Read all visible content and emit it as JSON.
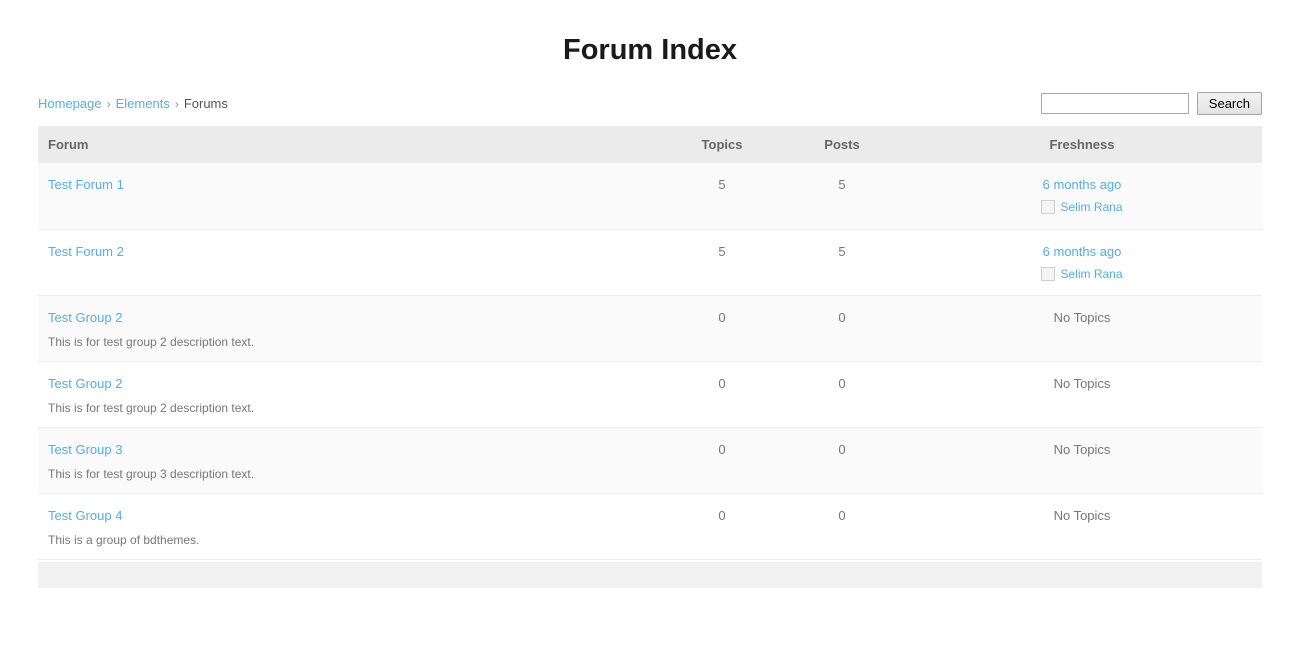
{
  "page": {
    "title": "Forum Index"
  },
  "breadcrumb": {
    "separator": "›",
    "items": [
      {
        "label": "Homepage"
      },
      {
        "label": "Elements"
      },
      {
        "label": "Forums"
      }
    ]
  },
  "search": {
    "value": "",
    "placeholder": "",
    "button_label": "Search"
  },
  "table": {
    "headers": {
      "forum": "Forum",
      "topics": "Topics",
      "posts": "Posts",
      "freshness": "Freshness"
    },
    "rows": [
      {
        "name": "Test Forum 1",
        "description": "",
        "topics": "5",
        "posts": "5",
        "freshness": "6 months ago",
        "freshness_user": "Selim Rana"
      },
      {
        "name": "Test Forum 2",
        "description": "",
        "topics": "5",
        "posts": "5",
        "freshness": "6 months ago",
        "freshness_user": "Selim Rana"
      },
      {
        "name": "Test Group 2",
        "description": "This is for test group 2 description text.",
        "topics": "0",
        "posts": "0",
        "freshness": "No Topics"
      },
      {
        "name": "Test Group 2",
        "description": "This is for test group 2 description text.",
        "topics": "0",
        "posts": "0",
        "freshness": "No Topics"
      },
      {
        "name": "Test Group 3",
        "description": "This is for test group 3 description text.",
        "topics": "0",
        "posts": "0",
        "freshness": "No Topics"
      },
      {
        "name": "Test Group 4",
        "description": "This is a group of bdthemes.",
        "topics": "0",
        "posts": "0",
        "freshness": "No Topics"
      }
    ]
  },
  "colors": {
    "link": "#55acee",
    "header_text": "#666666",
    "body_text": "#777777",
    "header_bg": "#ebebeb",
    "row_alt_bg": "#fafafa",
    "footer_bg": "#f1f1f1"
  }
}
